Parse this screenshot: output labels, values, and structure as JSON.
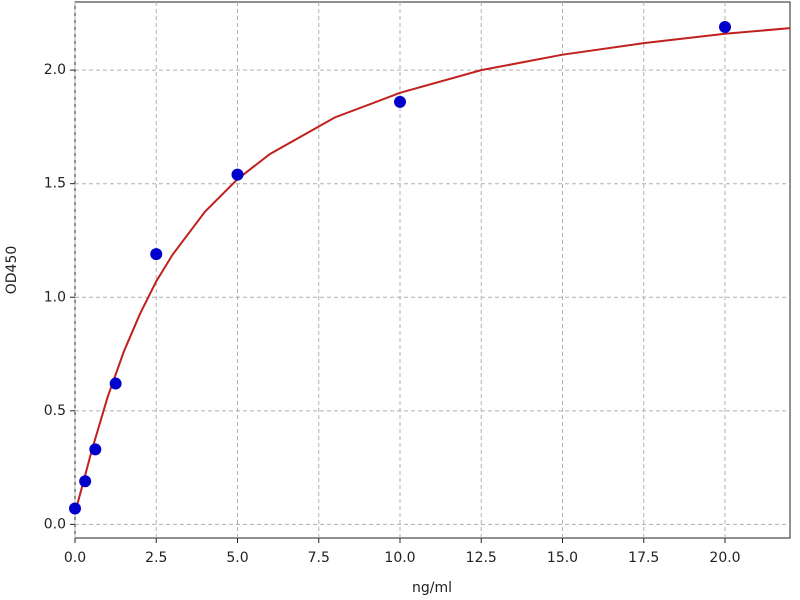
{
  "chart_data": {
    "type": "scatter",
    "x_label": "ng/ml",
    "y_label": "OD450",
    "xlim": [
      0,
      22
    ],
    "ylim": [
      -0.06,
      2.3
    ],
    "xticks": [
      {
        "value": 0,
        "label": "0.0"
      },
      {
        "value": 2.5,
        "label": "2.5"
      },
      {
        "value": 5,
        "label": "5.0"
      },
      {
        "value": 7.5,
        "label": "7.5"
      },
      {
        "value": 10,
        "label": "10.0"
      },
      {
        "value": 12.5,
        "label": "12.5"
      },
      {
        "value": 15,
        "label": "15.0"
      },
      {
        "value": 17.5,
        "label": "17.5"
      },
      {
        "value": 20,
        "label": "20.0"
      }
    ],
    "yticks": [
      {
        "value": 0,
        "label": "0.0"
      },
      {
        "value": 0.5,
        "label": "0.5"
      },
      {
        "value": 1,
        "label": "1.0"
      },
      {
        "value": 1.5,
        "label": "1.5"
      },
      {
        "value": 2,
        "label": "2.0"
      }
    ],
    "grid": true,
    "series": [
      {
        "type": "scatter",
        "color": "#0000cc",
        "x": [
          0,
          0.3125,
          0.625,
          1.25,
          2.5,
          5,
          10,
          20
        ],
        "values": [
          0.07,
          0.19,
          0.33,
          0.62,
          1.19,
          1.54,
          1.86,
          2.19
        ]
      },
      {
        "type": "line",
        "color": "#c0201e",
        "x": [
          0,
          0.25,
          0.5,
          1,
          1.5,
          2,
          2.5,
          3,
          4,
          5,
          6,
          8,
          10,
          12.5,
          15,
          17.5,
          20,
          22
        ],
        "values": [
          0.05,
          0.183,
          0.317,
          0.559,
          0.76,
          0.927,
          1.07,
          1.187,
          1.377,
          1.52,
          1.631,
          1.792,
          1.9,
          2.0,
          2.068,
          2.119,
          2.16,
          2.185
        ]
      }
    ]
  }
}
